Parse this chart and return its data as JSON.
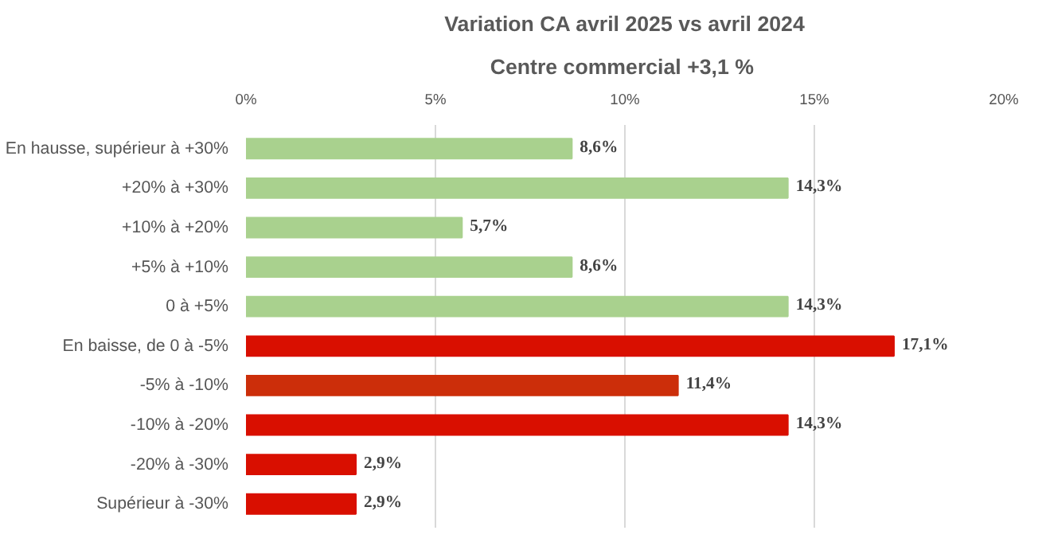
{
  "chart_data": {
    "type": "bar",
    "orientation": "horizontal",
    "title": "Variation CA avril 2025 vs avril 2024",
    "subtitle": "Centre commercial  +3,1 %",
    "categories": [
      "En hausse, supérieur à +30%",
      "+20% à +30%",
      "+10% à +20%",
      "+5% à +10%",
      "0 à +5%",
      "En baisse, de 0 à -5%",
      "-5% à -10%",
      "-10% à -20%",
      "-20% à -30%",
      "Supérieur à -30%"
    ],
    "values": [
      8.6,
      14.3,
      5.7,
      8.6,
      14.3,
      17.1,
      11.4,
      14.3,
      2.9,
      2.9
    ],
    "value_labels": [
      "8,6%",
      "14,3%",
      "5,7%",
      "8,6%",
      "14,3%",
      "17,1%",
      "11,4%",
      "14,3%",
      "2,9%",
      "2,9%"
    ],
    "colors": [
      "#a9d18e",
      "#a9d18e",
      "#a9d18e",
      "#a9d18e",
      "#a9d18e",
      "#d90f00",
      "#cc2e0a",
      "#d90f00",
      "#d90f00",
      "#d90f00"
    ],
    "xlim": [
      0,
      20
    ],
    "xticks": [
      {
        "value": 0,
        "label": "0%"
      },
      {
        "value": 5,
        "label": "5%"
      },
      {
        "value": 10,
        "label": "10%"
      },
      {
        "value": 15,
        "label": "15%"
      },
      {
        "value": 20,
        "label": "20%"
      }
    ],
    "grid": "x"
  }
}
